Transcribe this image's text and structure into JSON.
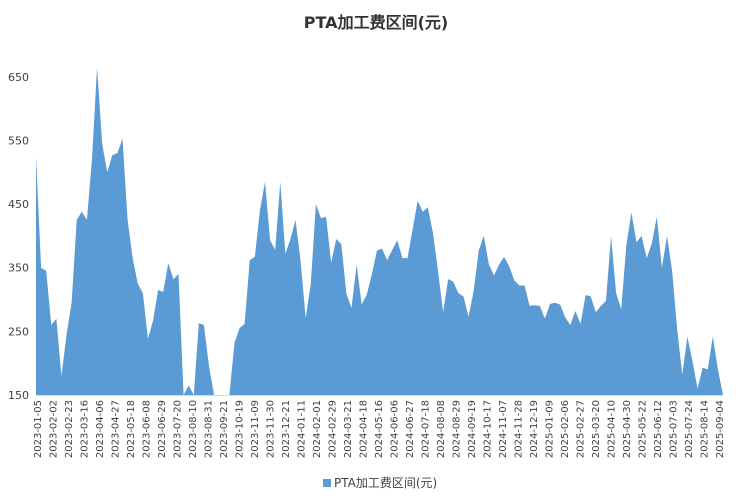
{
  "chart_data": {
    "type": "area",
    "title": "PTA加工费区间(元)",
    "xlabel": "",
    "ylabel": "",
    "ylim": [
      150,
      700
    ],
    "yticks": [
      150,
      250,
      350,
      450,
      550,
      650
    ],
    "grid": false,
    "legend_position": "bottom",
    "color": "#5B9BD5",
    "series": [
      {
        "name": "PTA加工费区间(元)",
        "values": [
          525,
          350,
          345,
          260,
          270,
          180,
          245,
          295,
          425,
          438,
          425,
          520,
          665,
          545,
          500,
          527,
          530,
          553,
          425,
          365,
          325,
          310,
          238,
          267,
          315,
          312,
          357,
          332,
          340,
          150,
          165,
          150,
          263,
          260,
          195,
          150,
          150,
          150,
          150,
          232,
          255,
          262,
          362,
          367,
          440,
          485,
          393,
          378,
          485,
          372,
          395,
          425,
          360,
          271,
          325,
          450,
          428,
          430,
          358,
          395,
          387,
          309,
          287,
          355,
          292,
          308,
          340,
          377,
          380,
          362,
          378,
          393,
          365,
          365,
          410,
          455,
          438,
          445,
          405,
          345,
          280,
          332,
          328,
          310,
          305,
          273,
          313,
          377,
          400,
          355,
          338,
          355,
          367,
          352,
          330,
          322,
          322,
          290,
          291,
          290,
          270,
          293,
          295,
          292,
          272,
          260,
          282,
          262,
          307,
          305,
          280,
          290,
          298,
          400,
          310,
          285,
          385,
          437,
          390,
          400,
          365,
          388,
          430,
          350,
          400,
          345,
          253,
          182,
          242,
          203,
          160,
          193,
          190,
          242,
          190,
          150
        ]
      }
    ],
    "x_tick_labels": [
      "2023-01-05",
      "2023-02-02",
      "2023-02-23",
      "2023-03-16",
      "2023-04-06",
      "2023-04-27",
      "2023-05-18",
      "2023-06-08",
      "2023-06-29",
      "2023-07-20",
      "2023-08-10",
      "2023-08-31",
      "2023-09-21",
      "2023-10-19",
      "2023-11-09",
      "2023-11-30",
      "2023-12-21",
      "2024-01-11",
      "2024-02-01",
      "2024-02-29",
      "2024-03-21",
      "2024-04-18",
      "2024-05-16",
      "2024-06-06",
      "2024-06-27",
      "2024-07-18",
      "2024-08-08",
      "2024-08-29",
      "2024-09-19",
      "2024-10-17",
      "2024-11-07",
      "2024-11-28",
      "2024-12-19",
      "2025-01-09",
      "2025-02-06",
      "2025-02-27",
      "2025-03-20",
      "2025-04-10",
      "2025-04-30",
      "2025-05-22",
      "2025-06-12",
      "2025-07-03",
      "2025-07-24",
      "2025-08-14",
      "2025-09-04"
    ]
  }
}
